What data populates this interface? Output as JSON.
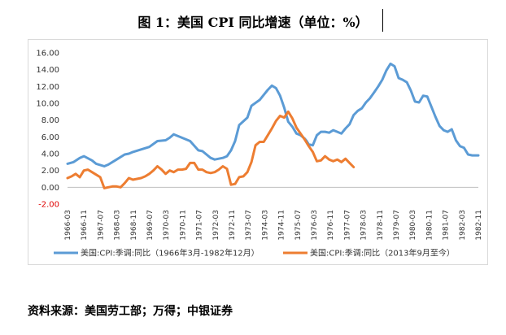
{
  "title": "图 1：美国 CPI 同比增速（单位：%）",
  "source": "资料来源：美国劳工部；万得；中银证券",
  "chart_data": {
    "type": "line",
    "title": "图 1：美国 CPI 同比增速（单位：%）",
    "ylim": [
      -2.0,
      16.0
    ],
    "yticks": [
      "16.00",
      "14.00",
      "12.00",
      "10.00",
      "8.00",
      "6.00",
      "4.00",
      "2.00",
      "0.00",
      "-2.00"
    ],
    "ytick_values": [
      16,
      14,
      12,
      10,
      8,
      6,
      4,
      2,
      0,
      -2
    ],
    "xticks": [
      "1966-03",
      "1966-11",
      "1967-07",
      "1968-03",
      "1968-11",
      "1969-07",
      "1970-03",
      "1970-11",
      "1971-07",
      "1972-03",
      "1972-11",
      "1973-07",
      "1974-03",
      "1974-11",
      "1975-07",
      "1976-03",
      "1976-11",
      "1977-07",
      "1978-03",
      "1978-11",
      "1979-07",
      "1980-03",
      "1980-11",
      "1981-07",
      "1982-03",
      "1982-11"
    ],
    "x_index_range": [
      0,
      201
    ],
    "legend_position": "bottom",
    "series": [
      {
        "name": "美国:CPI:季调:同比（1966年3月-1982年12月）",
        "color": "#5b9bd5",
        "x": [
          0,
          3,
          6,
          8,
          12,
          14,
          18,
          20,
          24,
          28,
          30,
          32,
          36,
          40,
          44,
          48,
          50,
          52,
          56,
          60,
          64,
          66,
          70,
          72,
          76,
          78,
          80,
          82,
          84,
          88,
          90,
          94,
          96,
          98,
          100,
          102,
          104,
          106,
          108,
          110,
          112,
          114,
          116,
          117,
          118,
          120,
          122,
          124,
          126,
          128,
          130,
          132,
          134,
          136,
          138,
          140,
          142,
          144,
          146,
          148,
          150,
          152,
          154,
          156,
          158,
          160,
          162,
          164,
          166,
          168,
          170,
          172,
          174,
          176,
          178,
          180,
          182,
          184,
          186,
          188,
          190,
          192,
          194,
          196,
          198,
          201
        ],
        "y": [
          2.8,
          3.0,
          3.5,
          3.7,
          3.2,
          2.8,
          2.5,
          2.7,
          3.3,
          3.9,
          4.0,
          4.2,
          4.5,
          4.8,
          5.5,
          5.6,
          5.9,
          6.3,
          5.9,
          5.5,
          4.4,
          4.3,
          3.5,
          3.3,
          3.5,
          3.7,
          4.4,
          5.5,
          7.4,
          8.3,
          9.7,
          10.4,
          11.0,
          11.6,
          12.1,
          11.8,
          10.9,
          9.5,
          7.8,
          7.2,
          6.4,
          6.2,
          5.8,
          5.5,
          5.1,
          5.0,
          6.2,
          6.6,
          6.6,
          6.5,
          6.8,
          6.6,
          6.4,
          7.0,
          7.5,
          8.6,
          9.1,
          9.4,
          10.1,
          10.6,
          11.3,
          12.0,
          12.8,
          13.9,
          14.7,
          14.4,
          13.0,
          12.8,
          12.5,
          11.5,
          10.2,
          10.1,
          10.9,
          10.8,
          9.6,
          8.4,
          7.3,
          6.8,
          6.6,
          6.9,
          5.6,
          4.9,
          4.7,
          3.9,
          3.8,
          3.8
        ]
      },
      {
        "name": "美国:CPI:季调:同比（2013年9月至今）",
        "color": "#ed7d31",
        "x": [
          0,
          2,
          4,
          6,
          8,
          10,
          12,
          14,
          16,
          18,
          20,
          22,
          24,
          26,
          28,
          30,
          32,
          34,
          36,
          38,
          40,
          42,
          44,
          46,
          48,
          50,
          52,
          54,
          56,
          58,
          60,
          62,
          64,
          66,
          68,
          70,
          72,
          74,
          76,
          78,
          80,
          82,
          84,
          86,
          88,
          90,
          92,
          94,
          96,
          98,
          100,
          102,
          104,
          106,
          108,
          110,
          112,
          114,
          116,
          118,
          120,
          122,
          124,
          126,
          128,
          130,
          132,
          134,
          136,
          138,
          140
        ],
        "y": [
          1.1,
          1.3,
          1.6,
          1.2,
          2.0,
          2.1,
          1.8,
          1.5,
          1.2,
          -0.1,
          0.0,
          0.1,
          0.1,
          0.0,
          0.5,
          1.1,
          0.9,
          1.0,
          1.1,
          1.3,
          1.6,
          2.0,
          2.5,
          2.1,
          1.6,
          2.0,
          1.8,
          2.1,
          2.1,
          2.2,
          2.9,
          2.9,
          2.1,
          2.1,
          1.8,
          1.7,
          1.8,
          2.1,
          2.5,
          2.2,
          0.3,
          0.4,
          1.2,
          1.3,
          1.8,
          3.0,
          5.0,
          5.4,
          5.4,
          6.2,
          7.0,
          7.9,
          8.5,
          8.3,
          9.0,
          8.2,
          7.1,
          6.4,
          5.7,
          4.9,
          4.2,
          3.1,
          3.2,
          3.7,
          3.3,
          3.1,
          3.3,
          3.0,
          3.4,
          2.9,
          2.4
        ]
      }
    ]
  }
}
